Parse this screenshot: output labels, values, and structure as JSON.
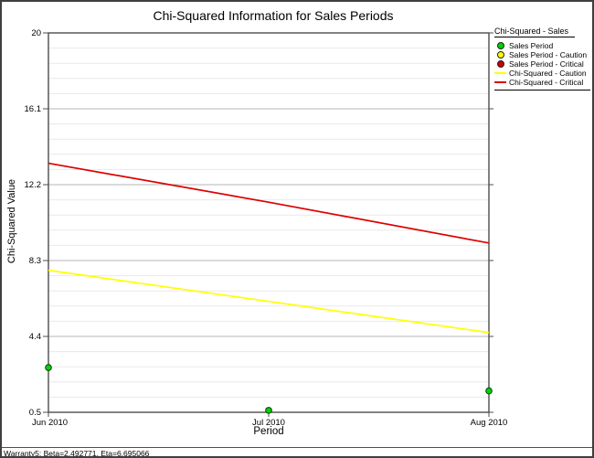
{
  "window": {
    "status_bar": "Warranty5: Beta=2.492771, Eta=6.695066"
  },
  "chart_data": {
    "type": "line",
    "title": "Chi-Squared Information for Sales Periods",
    "xlabel": "Period",
    "ylabel": "Chi-Squared Value",
    "x_categories": [
      "Jun 2010",
      "Jul 2010",
      "Aug 2010"
    ],
    "y_ticks": [
      20,
      16.1,
      12.2,
      8.3,
      4.4,
      0.5
    ],
    "ylim": [
      0.5,
      20
    ],
    "minor_divisions_per_major": 5,
    "grid": "horizontal-only",
    "legend_position": "top-right",
    "legend_header": "Chi-Squared - Sales",
    "series": [
      {
        "name": "Sales Period",
        "kind": "scatter",
        "color": "#00d300",
        "values": [
          2.8,
          0.6,
          1.6
        ]
      },
      {
        "name": "Chi-Squared - Caution",
        "kind": "line",
        "color": "#ffff00",
        "values": [
          7.8,
          6.2,
          4.6
        ]
      },
      {
        "name": "Chi-Squared - Critical",
        "kind": "line",
        "color": "#dd0000",
        "values": [
          13.3,
          11.3,
          9.2
        ]
      }
    ],
    "legend_items": [
      {
        "label": "Sales Period",
        "marker": "dot",
        "color": "#00d300"
      },
      {
        "label": "Sales Period - Caution",
        "marker": "dot",
        "color": "#ffff00"
      },
      {
        "label": "Sales Period - Critical",
        "marker": "dot",
        "color": "#cc0000"
      },
      {
        "label": "Chi-Squared - Caution",
        "marker": "line",
        "color": "#ffff00"
      },
      {
        "label": "Chi-Squared - Critical",
        "marker": "line",
        "color": "#dd0000"
      }
    ],
    "colors": {
      "frame": "#4d4d4d",
      "major_grid": "#b4b4b4",
      "minor_grid": "#e9e9e9",
      "point_stroke": "#064006"
    }
  }
}
